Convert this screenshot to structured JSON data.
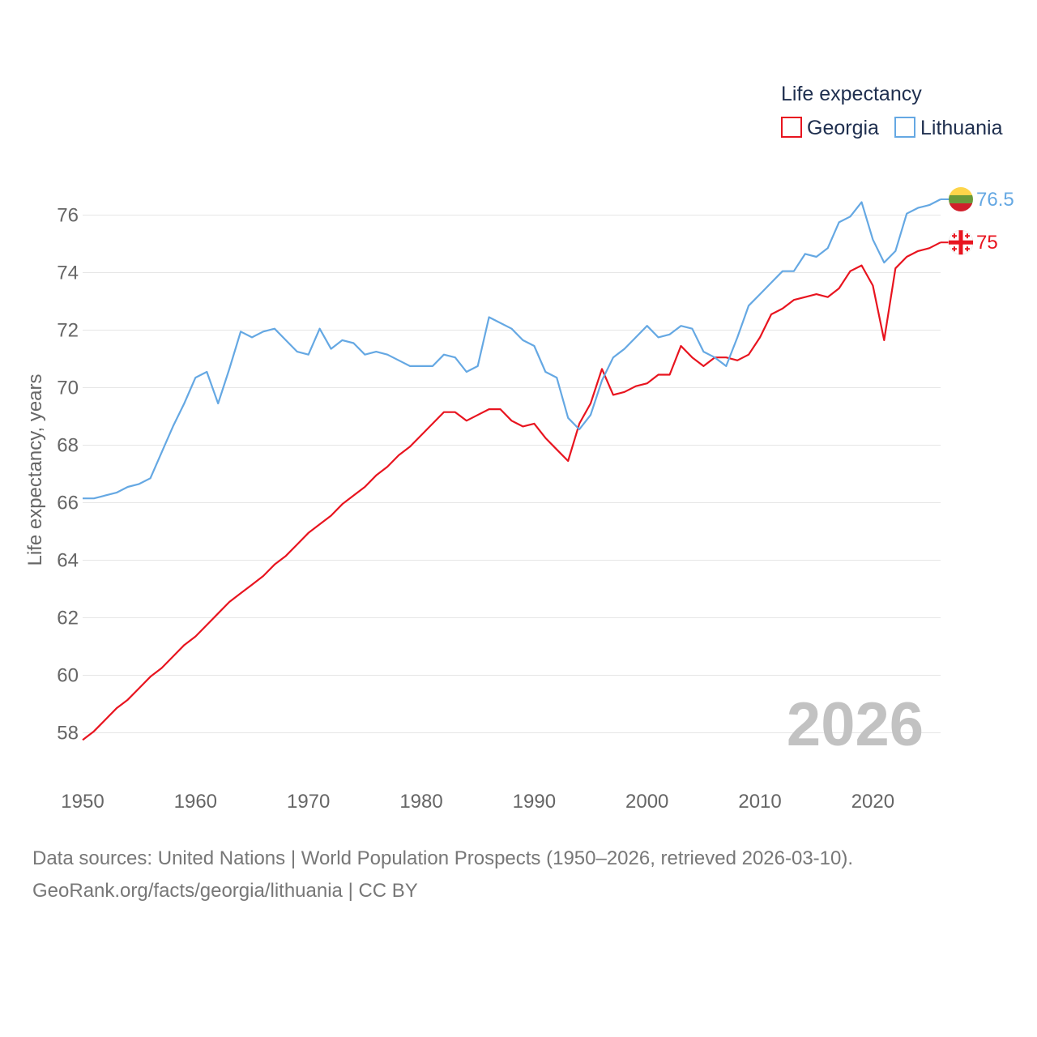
{
  "chart_data": {
    "type": "line",
    "title": "",
    "xlabel": "",
    "ylabel": "Life expectancy, years",
    "xlim": [
      1950,
      2026
    ],
    "ylim": [
      57,
      77
    ],
    "yticks": [
      58,
      60,
      62,
      64,
      66,
      68,
      70,
      72,
      74,
      76
    ],
    "xticks": [
      1950,
      1960,
      1970,
      1980,
      1990,
      2000,
      2010,
      2020
    ],
    "current_year": "2026",
    "legend": {
      "title": "Life expectancy",
      "position": "top-right",
      "entries": [
        "Georgia",
        "Lithuania"
      ]
    },
    "x": [
      1950,
      1951,
      1952,
      1953,
      1954,
      1955,
      1956,
      1957,
      1958,
      1959,
      1960,
      1961,
      1962,
      1963,
      1964,
      1965,
      1966,
      1967,
      1968,
      1969,
      1970,
      1971,
      1972,
      1973,
      1974,
      1975,
      1976,
      1977,
      1978,
      1979,
      1980,
      1981,
      1982,
      1983,
      1984,
      1985,
      1986,
      1987,
      1988,
      1989,
      1990,
      1991,
      1992,
      1993,
      1994,
      1995,
      1996,
      1997,
      1998,
      1999,
      2000,
      2001,
      2002,
      2003,
      2004,
      2005,
      2006,
      2007,
      2008,
      2009,
      2010,
      2011,
      2012,
      2013,
      2014,
      2015,
      2016,
      2017,
      2018,
      2019,
      2020,
      2021,
      2022,
      2023,
      2024,
      2025,
      2026
    ],
    "series": [
      {
        "name": "Georgia",
        "color": "#e8141f",
        "end_label": "75",
        "values": [
          57.75,
          58.05,
          58.45,
          58.85,
          59.15,
          59.55,
          59.95,
          60.25,
          60.65,
          61.05,
          61.35,
          61.75,
          62.15,
          62.55,
          62.85,
          63.15,
          63.45,
          63.85,
          64.15,
          64.55,
          64.95,
          65.25,
          65.55,
          65.95,
          66.25,
          66.55,
          66.95,
          67.25,
          67.65,
          67.95,
          68.35,
          68.75,
          69.15,
          69.15,
          68.85,
          69.05,
          69.25,
          69.25,
          68.85,
          68.65,
          68.75,
          68.25,
          67.85,
          67.45,
          68.75,
          69.45,
          70.65,
          69.75,
          69.85,
          70.05,
          70.15,
          70.45,
          70.45,
          71.45,
          71.05,
          70.75,
          71.05,
          71.05,
          70.95,
          71.15,
          71.75,
          72.55,
          72.75,
          73.05,
          73.15,
          73.25,
          73.15,
          73.45,
          74.05,
          74.25,
          73.55,
          71.65,
          74.15,
          74.55,
          74.75,
          74.85,
          75.05
        ]
      },
      {
        "name": "Lithuania",
        "color": "#65a8e3",
        "end_label": "76.5",
        "values": [
          66.15,
          66.15,
          66.25,
          66.35,
          66.55,
          66.65,
          66.85,
          67.75,
          68.65,
          69.45,
          70.35,
          70.55,
          69.45,
          70.65,
          71.95,
          71.75,
          71.95,
          72.05,
          71.65,
          71.25,
          71.15,
          72.05,
          71.35,
          71.65,
          71.55,
          71.15,
          71.25,
          71.15,
          70.95,
          70.75,
          70.75,
          70.75,
          71.15,
          71.05,
          70.55,
          70.75,
          72.45,
          72.25,
          72.05,
          71.65,
          71.45,
          70.55,
          70.35,
          68.95,
          68.55,
          69.05,
          70.25,
          71.05,
          71.35,
          71.75,
          72.15,
          71.75,
          71.85,
          72.15,
          72.05,
          71.25,
          71.05,
          70.75,
          71.75,
          72.85,
          73.25,
          73.65,
          74.05,
          74.05,
          74.65,
          74.55,
          74.85,
          75.75,
          75.95,
          76.45,
          75.15,
          74.35,
          74.75,
          76.05,
          76.25,
          76.35,
          76.55
        ]
      }
    ]
  },
  "source": {
    "line1": "Data sources: United Nations | World Population Prospects (1950–2026, retrieved 2026-03-10).",
    "line2": "GeoRank.org/facts/georgia/lithuania | CC BY"
  }
}
